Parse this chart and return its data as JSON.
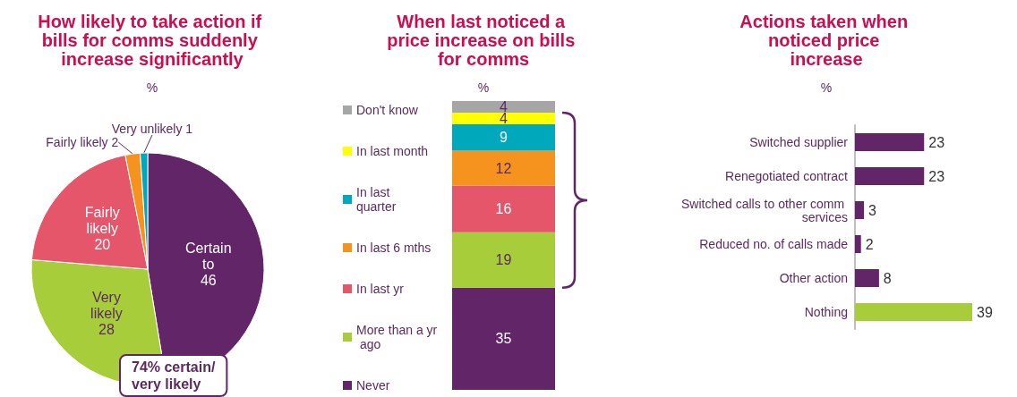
{
  "chart_data": [
    {
      "type": "pie",
      "title": "How likely to take action if bills for comms suddenly increase significantly",
      "subtitle": "%",
      "categories": [
        "Certain to",
        "Very likely",
        "Fairly likely",
        "Fairly likely",
        "Very unlikely"
      ],
      "values": [
        46,
        28,
        20,
        2,
        1
      ],
      "colors": [
        "#622567",
        "#a8cd3a",
        "#e5566a",
        "#f6921e",
        "#00a8bc"
      ],
      "data_labels": true,
      "annotations": [
        "74% certain/ very likely"
      ]
    },
    {
      "type": "bar",
      "title": "When last noticed a price increase on bills for comms",
      "subtitle": "%",
      "stacked": true,
      "categories": [
        null
      ],
      "series": [
        {
          "name": "Never",
          "color": "#622567",
          "values": [
            35
          ]
        },
        {
          "name": "More than a yr ago",
          "color": "#a8cd3a",
          "values": [
            19
          ]
        },
        {
          "name": "In last yr",
          "color": "#e5566a",
          "values": [
            16
          ]
        },
        {
          "name": "In last 6 mths",
          "color": "#f6921e",
          "values": [
            12
          ]
        },
        {
          "name": "In last quarter",
          "color": "#00a8bc",
          "values": [
            9
          ]
        },
        {
          "name": "In last month",
          "color": "#ffff00",
          "values": [
            4
          ]
        },
        {
          "name": "Don't know",
          "color": "#a6a6a6",
          "values": [
            4
          ]
        }
      ],
      "data_labels": true,
      "legend": "left"
    },
    {
      "type": "bar",
      "orientation": "horizontal",
      "title": "Actions taken when noticed price increase",
      "subtitle": "%",
      "categories": [
        "Switched supplier",
        "Renegotiated contract",
        "Switched calls to other comm services",
        "Reduced no. of calls made",
        "Other action",
        "Nothing"
      ],
      "values": [
        23,
        23,
        3,
        2,
        8,
        39
      ],
      "colors": [
        "#622567",
        "#622567",
        "#622567",
        "#622567",
        "#622567",
        "#a8cd3a"
      ],
      "data_labels": true
    }
  ]
}
